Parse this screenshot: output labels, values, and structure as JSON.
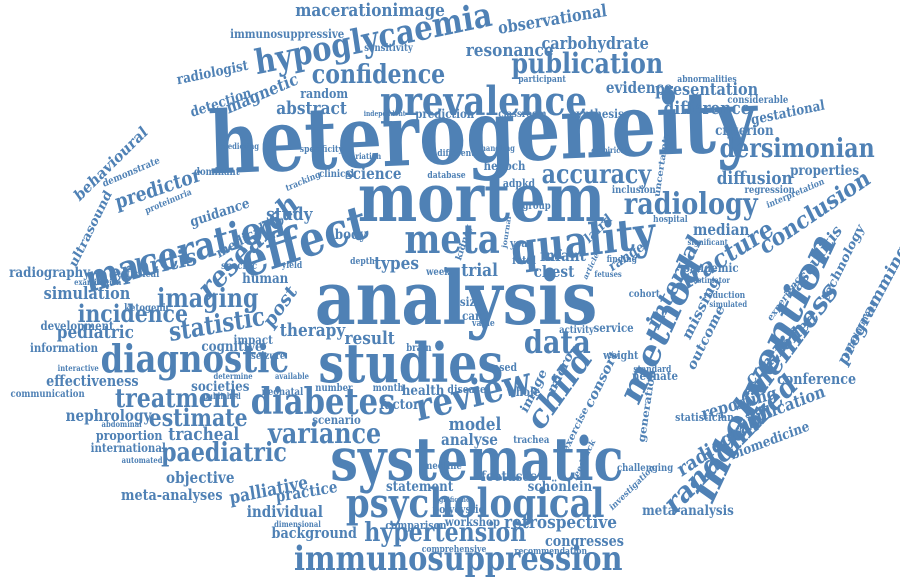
{
  "word_color": "#4f81b5",
  "words": [
    {
      "text": "heterogeneity"
    },
    {
      "text": "analysis"
    },
    {
      "text": "mortem"
    },
    {
      "text": "systematic"
    },
    {
      "text": "studies"
    },
    {
      "text": "intervention"
    },
    {
      "text": "psychological"
    },
    {
      "text": "immunosuppression"
    },
    {
      "text": "prevalence"
    },
    {
      "text": "effect"
    },
    {
      "text": "quality"
    },
    {
      "text": "meta"
    },
    {
      "text": "diagnostic"
    },
    {
      "text": "diabetes"
    },
    {
      "text": "review"
    },
    {
      "text": "method"
    },
    {
      "text": "child"
    },
    {
      "text": "data"
    },
    {
      "text": "maceration"
    },
    {
      "text": "hypoglycaemia"
    },
    {
      "text": "publication"
    },
    {
      "text": "confidence"
    },
    {
      "text": "accuracy"
    },
    {
      "text": "radiology"
    },
    {
      "text": "dersimonian"
    },
    {
      "text": "hypertension"
    },
    {
      "text": "variance"
    },
    {
      "text": "paediatric"
    },
    {
      "text": "treatment"
    },
    {
      "text": "estimate"
    },
    {
      "text": "randomized"
    },
    {
      "text": "loneliness"
    },
    {
      "text": "research"
    },
    {
      "text": "imaging"
    },
    {
      "text": "incidence"
    },
    {
      "text": "statistic"
    },
    {
      "text": "nephritis"
    },
    {
      "text": "interval"
    },
    {
      "text": "conclusion"
    },
    {
      "text": "fracture"
    },
    {
      "text": "radiograph"
    },
    {
      "text": "retrospective"
    },
    {
      "text": "macerationimage"
    },
    {
      "text": "resonance"
    },
    {
      "text": "carbohydrate"
    },
    {
      "text": "observational"
    },
    {
      "text": "presentation"
    },
    {
      "text": "evidence"
    },
    {
      "text": "difference"
    },
    {
      "text": "diffusion"
    },
    {
      "text": "criterion"
    },
    {
      "text": "properties"
    },
    {
      "text": "abstract"
    },
    {
      "text": "magnetic"
    },
    {
      "text": "radiologist"
    },
    {
      "text": "detection"
    },
    {
      "text": "behavioural"
    },
    {
      "text": "ultrasound"
    },
    {
      "text": "predictor"
    },
    {
      "text": "study"
    },
    {
      "text": "science"
    },
    {
      "text": "trial"
    },
    {
      "text": "types"
    },
    {
      "text": "body"
    },
    {
      "text": "post"
    },
    {
      "text": "chest"
    },
    {
      "text": "infant"
    },
    {
      "text": "laird"
    },
    {
      "text": "range"
    },
    {
      "text": "median"
    },
    {
      "text": "missing"
    },
    {
      "text": "outcome"
    },
    {
      "text": "controlled"
    },
    {
      "text": "vasculitis"
    },
    {
      "text": "technology"
    },
    {
      "text": "programming"
    },
    {
      "text": "conference"
    },
    {
      "text": "application"
    },
    {
      "text": "reporting"
    },
    {
      "text": "biomedicine"
    },
    {
      "text": "simulation"
    },
    {
      "text": "pediatric"
    },
    {
      "text": "radiography"
    },
    {
      "text": "guidance"
    },
    {
      "text": "medical"
    },
    {
      "text": "human"
    },
    {
      "text": "therapy"
    },
    {
      "text": "result"
    },
    {
      "text": "cognitive"
    },
    {
      "text": "effectiveness"
    },
    {
      "text": "nephrology"
    },
    {
      "text": "tracheal"
    },
    {
      "text": "objective"
    },
    {
      "text": "palliative"
    },
    {
      "text": "practice"
    },
    {
      "text": "individual"
    },
    {
      "text": "background"
    },
    {
      "text": "meta-analyses"
    },
    {
      "text": "statement"
    },
    {
      "text": "foetuses"
    },
    {
      "text": "schönlein"
    },
    {
      "text": "workshop"
    },
    {
      "text": "congresses"
    },
    {
      "text": "meta-analysis"
    },
    {
      "text": "model"
    },
    {
      "text": "analyse"
    },
    {
      "text": "image"
    },
    {
      "text": "micro"
    },
    {
      "text": "consort"
    },
    {
      "text": "societies"
    },
    {
      "text": "scenario"
    },
    {
      "text": "health"
    },
    {
      "text": "factor"
    },
    {
      "text": "information"
    },
    {
      "text": "development"
    },
    {
      "text": "impact"
    },
    {
      "text": "proportion"
    },
    {
      "text": "international"
    },
    {
      "text": "random"
    },
    {
      "text": "immunosuppressive"
    },
    {
      "text": "sensitivity"
    },
    {
      "text": "prediction"
    },
    {
      "text": "synthesis"
    },
    {
      "text": "classroom"
    },
    {
      "text": "participant"
    },
    {
      "text": "abnormalities"
    },
    {
      "text": "gestational"
    },
    {
      "text": "considerable"
    },
    {
      "text": "regression"
    },
    {
      "text": "pandemic"
    },
    {
      "text": "cohort"
    },
    {
      "text": "statistician"
    },
    {
      "text": "neonate"
    },
    {
      "text": "service"
    },
    {
      "text": "activity"
    },
    {
      "text": "whole"
    },
    {
      "text": "disease"
    },
    {
      "text": "trachea"
    },
    {
      "text": "exercise"
    },
    {
      "text": "generation"
    },
    {
      "text": "challenging"
    },
    {
      "text": "investigation"
    },
    {
      "text": "experience"
    },
    {
      "text": "reduction"
    },
    {
      "text": "communication"
    },
    {
      "text": "neonatal"
    },
    {
      "text": "number"
    },
    {
      "text": "month"
    },
    {
      "text": "seizure"
    },
    {
      "text": "ketogenic"
    },
    {
      "text": "statistical"
    },
    {
      "text": "specific"
    },
    {
      "text": "clinical"
    },
    {
      "text": "tracking"
    },
    {
      "text": "specificity"
    },
    {
      "text": "hospital"
    },
    {
      "text": "significant"
    },
    {
      "text": "simulated"
    },
    {
      "text": "interpretation"
    },
    {
      "text": "inclusion"
    },
    {
      "text": "uncertainty"
    },
    {
      "text": "henoch"
    },
    {
      "text": "adpkd"
    },
    {
      "text": "database"
    },
    {
      "text": "different"
    },
    {
      "text": "predicting"
    },
    {
      "text": "demonstrate"
    },
    {
      "text": "dominant"
    },
    {
      "text": "proteinuria"
    },
    {
      "text": "examination"
    },
    {
      "text": "empirical"
    },
    {
      "text": "kidney"
    },
    {
      "text": "group"
    },
    {
      "text": "fetal"
    },
    {
      "text": "year"
    },
    {
      "text": "week"
    },
    {
      "text": "depth"
    },
    {
      "text": "yield"
    },
    {
      "text": "size"
    },
    {
      "text": "care"
    },
    {
      "text": "brain"
    },
    {
      "text": "based"
    },
    {
      "text": "polycystic"
    },
    {
      "text": "comparison"
    },
    {
      "text": "comprehensive"
    },
    {
      "text": "recommendation"
    },
    {
      "text": "medline"
    },
    {
      "text": "feedback"
    },
    {
      "text": "standard"
    },
    {
      "text": "weight"
    },
    {
      "text": "abdominal"
    },
    {
      "text": "automated"
    },
    {
      "text": "published"
    },
    {
      "text": "interactive"
    },
    {
      "text": "dimensional"
    },
    {
      "text": "finding"
    },
    {
      "text": "fetuses"
    },
    {
      "text": "article"
    },
    {
      "text": "estimator"
    },
    {
      "text": "appointment"
    },
    {
      "text": "independent"
    },
    {
      "text": "variation"
    },
    {
      "text": "handling"
    },
    {
      "text": "journal"
    },
    {
      "text": "value"
    },
    {
      "text": "determine"
    },
    {
      "text": "available"
    },
    {
      "text": "significance"
    }
  ]
}
